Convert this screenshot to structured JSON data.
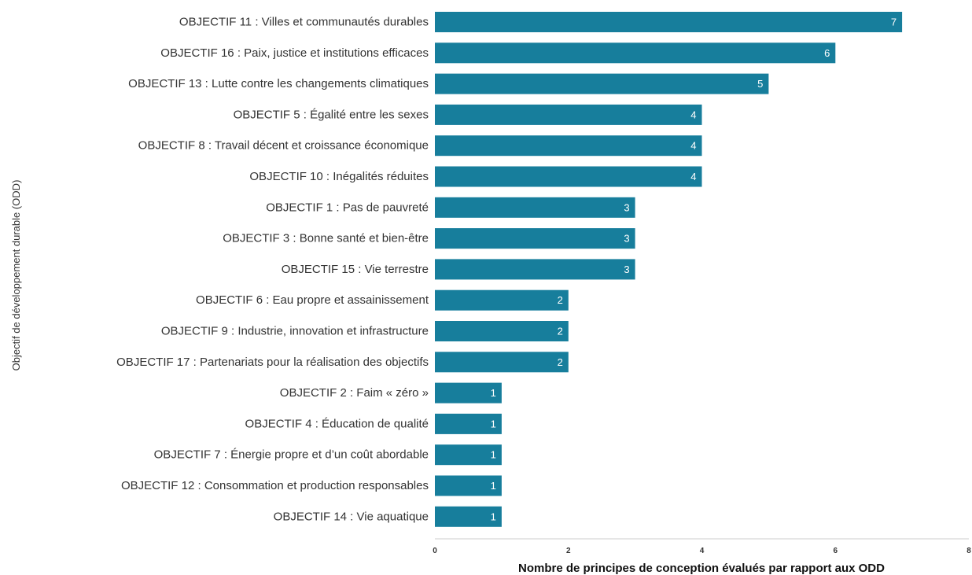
{
  "colors": {
    "bar": "#177e9c",
    "value_label": "#ffffff",
    "axis_line": "#cccccc",
    "text": "#333333"
  },
  "chart_data": {
    "type": "bar",
    "orientation": "horizontal",
    "categories": [
      "OBJECTIF 11 : Villes et communautés durables",
      "OBJECTIF 16 : Paix, justice et institutions efficaces",
      "OBJECTIF 13 : Lutte contre les changements climatiques",
      "OBJECTIF 5 : Égalité entre les sexes",
      "OBJECTIF 8 : Travail décent et croissance économique",
      "OBJECTIF 10 : Inégalités réduites",
      "OBJECTIF 1 : Pas de pauvreté",
      "OBJECTIF 3 : Bonne santé et bien-être",
      "OBJECTIF 15 : Vie terrestre",
      "OBJECTIF 6 : Eau propre et assainissement",
      "OBJECTIF 9 : Industrie, innovation et infrastructure",
      "OBJECTIF 17 : Partenariats pour la réalisation des objectifs",
      "OBJECTIF 2 : Faim « zéro »",
      "OBJECTIF 4 : Éducation de qualité",
      "OBJECTIF 7 : Énergie propre et d’un coût abordable",
      "OBJECTIF 12 : Consommation et production responsables",
      "OBJECTIF 14 : Vie aquatique"
    ],
    "values": [
      7,
      6,
      5,
      4,
      4,
      4,
      3,
      3,
      3,
      2,
      2,
      2,
      1,
      1,
      1,
      1,
      1
    ],
    "xlabel": "Nombre de principes de conception évalués par rapport aux ODD",
    "ylabel": "Objectif de développement durable (ODD)",
    "xlim": [
      0,
      8
    ],
    "xticks": [
      0,
      2,
      4,
      6,
      8
    ],
    "grid": false,
    "data_labels": true
  }
}
